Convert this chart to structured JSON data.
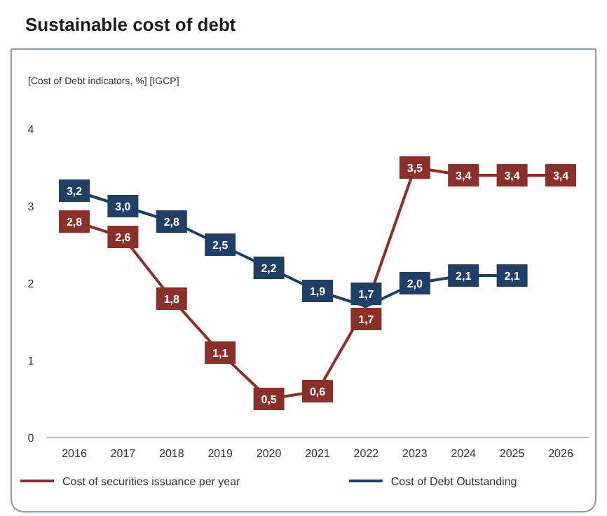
{
  "chart_data": {
    "type": "line",
    "title": "Sustainable cost of debt",
    "subtitle": "[Cost of Debt indicators, %] [IGCP]",
    "categories": [
      "2016",
      "2017",
      "2018",
      "2019",
      "2020",
      "2021",
      "2022",
      "2023",
      "2024",
      "2025",
      "2026"
    ],
    "series": [
      {
        "name": "Cost of securities issuance per year",
        "color": "#8b2f2a",
        "values": [
          2.8,
          2.6,
          1.8,
          1.1,
          0.5,
          0.6,
          1.7,
          3.5,
          3.4,
          3.4,
          3.4
        ],
        "value_labels": [
          "2,8",
          "2,6",
          "1,8",
          "1,1",
          "0,5",
          "0,6",
          "1,7",
          "3,5",
          "3,4",
          "3,4",
          "3,4"
        ]
      },
      {
        "name": "Cost of Debt Outstanding",
        "color": "#1f3f66",
        "values": [
          3.2,
          3.0,
          2.8,
          2.5,
          2.2,
          1.9,
          1.7,
          2.0,
          2.1,
          2.1,
          null
        ],
        "value_labels": [
          "3,2",
          "3,0",
          "2,8",
          "2,5",
          "2,2",
          "1,9",
          "1,7",
          "2,0",
          "2,1",
          "2,1",
          null
        ]
      }
    ],
    "ylim": [
      0,
      4
    ],
    "yticks": [
      0,
      1,
      2,
      3,
      4
    ],
    "grid": false,
    "legend": "bottom",
    "marker": "square",
    "line_style": "solid"
  }
}
